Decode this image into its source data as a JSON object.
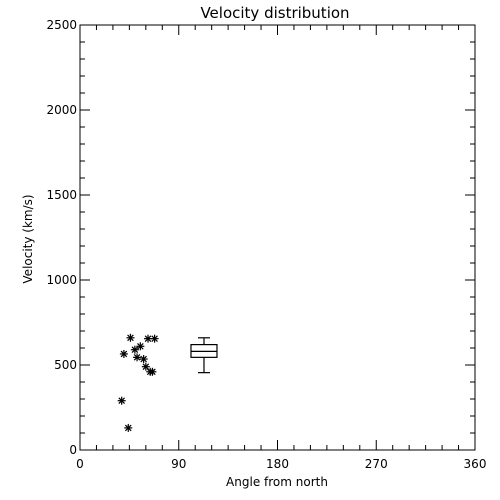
{
  "chart_data": {
    "type": "scatter",
    "title": "Velocity distribution",
    "xlabel": "Angle from north",
    "ylabel": "Velocity (km/s)",
    "xlim": [
      0,
      360
    ],
    "ylim": [
      0,
      2500
    ],
    "xticks": [
      0,
      90,
      180,
      270,
      360
    ],
    "yticks": [
      0,
      500,
      1000,
      1500,
      2000,
      2500
    ],
    "grid": false,
    "points": [
      {
        "x": 46,
        "y": 660
      },
      {
        "x": 62,
        "y": 655
      },
      {
        "x": 68,
        "y": 655
      },
      {
        "x": 40,
        "y": 565
      },
      {
        "x": 50,
        "y": 590
      },
      {
        "x": 55,
        "y": 610
      },
      {
        "x": 52,
        "y": 545
      },
      {
        "x": 58,
        "y": 535
      },
      {
        "x": 60,
        "y": 490
      },
      {
        "x": 64,
        "y": 460
      },
      {
        "x": 66,
        "y": 460
      },
      {
        "x": 38,
        "y": 290
      },
      {
        "x": 44,
        "y": 130
      }
    ],
    "boxplot": {
      "x": 113,
      "whisker_low": 455,
      "q1": 545,
      "median": 580,
      "q3": 620,
      "whisker_high": 660
    },
    "color": "#000000"
  }
}
